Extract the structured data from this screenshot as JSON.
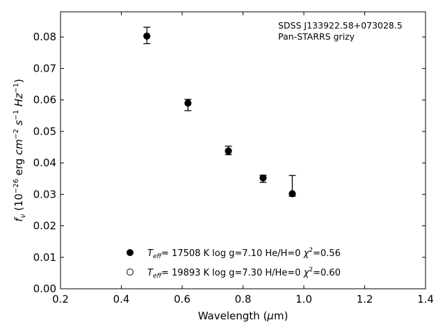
{
  "chart_data": {
    "type": "scatter",
    "title": "",
    "xlabel": "Wavelength (μm)",
    "ylabel": "fν (10⁻²⁶ erg cm⁻² s⁻¹ Hz⁻¹)",
    "xlim": [
      0.2,
      1.4
    ],
    "ylim": [
      0.0,
      0.088
    ],
    "x_ticks": [
      0.2,
      0.4,
      0.6,
      0.8,
      1.0,
      1.2,
      1.4
    ],
    "x_tick_labels": [
      "0.2",
      "0.4",
      "0.6",
      "0.8",
      "1.0",
      "1.2",
      "1.4"
    ],
    "y_ticks": [
      0.0,
      0.01,
      0.02,
      0.03,
      0.04,
      0.05,
      0.06,
      0.07,
      0.08
    ],
    "y_tick_labels": [
      "0.00",
      "0.01",
      "0.02",
      "0.03",
      "0.04",
      "0.05",
      "0.06",
      "0.07",
      "0.08"
    ],
    "grid": false,
    "annotation": [
      "SDSS J133922.58+073028.5",
      "Pan-STARRS grizy"
    ],
    "observed": {
      "x": [
        0.484,
        0.619,
        0.752,
        0.866,
        0.962
      ],
      "y": [
        0.0805,
        0.0586,
        0.044,
        0.035,
        0.0302
      ],
      "yerr_low": [
        0.0026,
        0.002,
        0.0014,
        0.0012,
        0.0008
      ],
      "yerr_high": [
        0.0026,
        0.0016,
        0.0013,
        0.0011,
        0.0058
      ]
    },
    "series": [
      {
        "name": "Teff= 17508 K  log g=7.10  He/H=0  χ²=0.56",
        "marker": "filled-circle",
        "x": [
          0.484,
          0.619,
          0.752,
          0.866,
          0.962
        ],
        "y": [
          0.0803,
          0.059,
          0.0438,
          0.0352,
          0.0302
        ]
      },
      {
        "name": "Teff= 19893 K  log g=7.30  H/He=0  χ²=0.60",
        "marker": "open-circle",
        "x": [
          0.484,
          0.619,
          0.752,
          0.866,
          0.962
        ],
        "y": [
          0.0803,
          0.059,
          0.0438,
          0.0352,
          0.0302
        ]
      }
    ],
    "legend": [
      {
        "marker": "filled-circle",
        "teff": "17508",
        "logg": "7.10",
        "comp": "He/H=0",
        "chi2": "0.56"
      },
      {
        "marker": "open-circle",
        "teff": "19893",
        "logg": "7.30",
        "comp": "H/He=0",
        "chi2": "0.60"
      }
    ],
    "legend_placement": "lower-center"
  }
}
